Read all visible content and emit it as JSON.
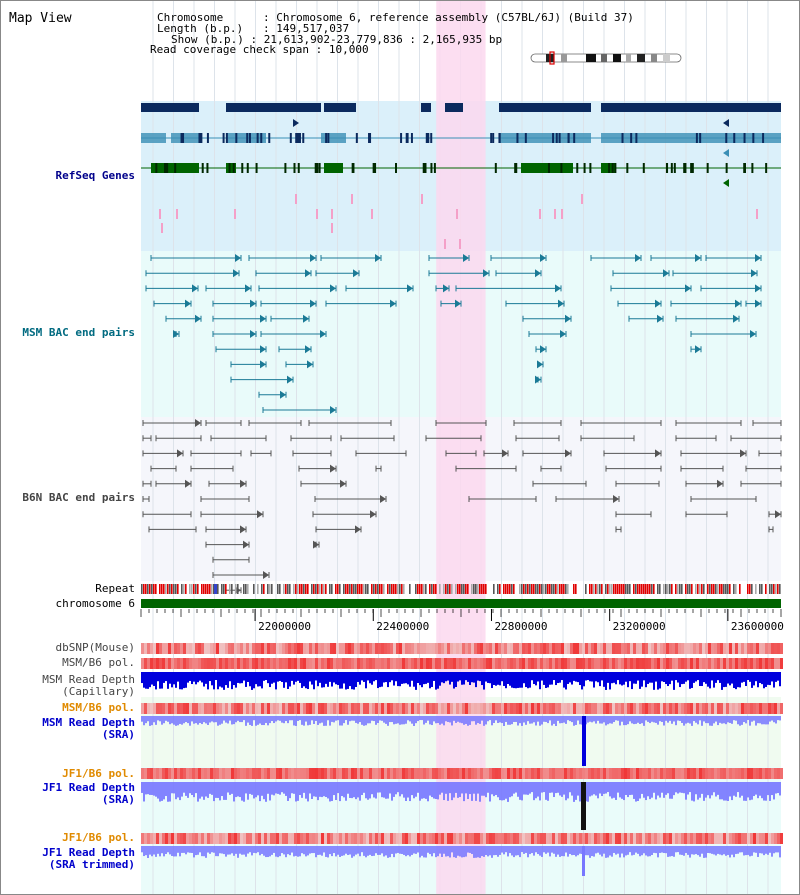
{
  "view_title": "Map View",
  "info": {
    "chromosome_label": "Chromosome",
    "chromosome_value": "Chromosome 6, reference assembly (C57BL/6J) (Build 37)",
    "length_label": "Length (b.p.)",
    "length_value": "149,517,037",
    "show_label": "Show (b.p.)",
    "show_value": "21,613,902-23,779,836 : 2,165,935 bp",
    "coverage_label": "Read coverage check span",
    "coverage_value": "10,000"
  },
  "tracks": {
    "refseq": "RefSeq Genes",
    "msm_bac": "MSM BAC end pairs",
    "b6n_bac": "B6N BAC end pairs",
    "repeat": "Repeat",
    "chromosome": "chromosome 6",
    "dbsnp": "dbSNP(Mouse)",
    "msm_pol": "MSM/B6 pol.",
    "msm_depth_cap_1": "MSM Read Depth",
    "msm_depth_cap_2": "(Capillary)",
    "msm_pol_sra": "MSM/B6 pol.",
    "msm_depth_sra_1": "MSM Read Depth",
    "msm_depth_sra_2": "(SRA)",
    "jf1_pol": "JF1/B6 pol.",
    "jf1_depth_1": "JF1 Read Depth",
    "jf1_depth_2": "(SRA)",
    "jf1_pol_2": "JF1/B6 pol.",
    "jf1_trim_1": "JF1 Read Depth",
    "jf1_trim_2": "(SRA trimmed)"
  },
  "axis": {
    "range_bp": [
      21613902,
      23779836
    ],
    "ticks": [
      "22000000",
      "22400000",
      "22800000",
      "23200000",
      "23600000"
    ],
    "tick_values": [
      22000000,
      22400000,
      22800000,
      23200000,
      23600000
    ]
  },
  "highlight_bp": [
    22613000,
    22780000
  ],
  "colors": {
    "refseq_bg": "#dbf0fa",
    "msm_bg": "#e9fbfa",
    "b6n_bg": "#f5f6fb",
    "highlight": "#fbd8ef",
    "gene_dark": "#0b2a5e",
    "gene_mid": "#3a8fb5",
    "gene_green": "#006400",
    "bac_teal": "#1a7a96",
    "bac_gray": "#555555",
    "chromosome_bar": "#006400",
    "depth_blue": "#0000dd",
    "depth_light": "#7777ff",
    "pol_red": "#e84040"
  }
}
